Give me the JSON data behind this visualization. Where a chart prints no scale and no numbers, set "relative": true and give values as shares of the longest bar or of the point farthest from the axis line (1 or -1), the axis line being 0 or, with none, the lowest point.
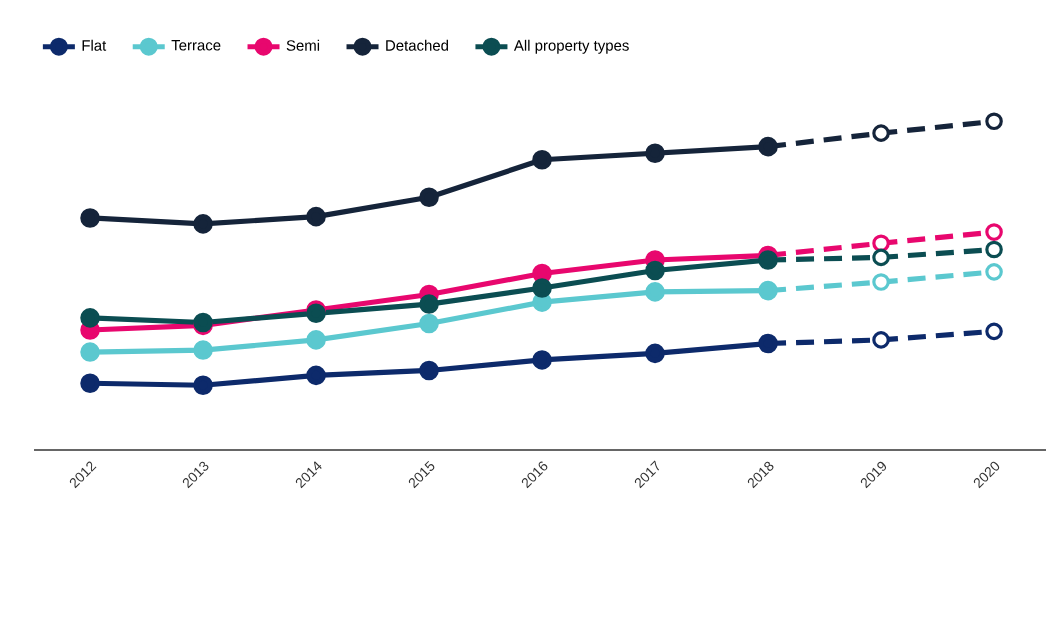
{
  "chart_data": {
    "type": "line",
    "relative": true,
    "legend": "top left",
    "marker": "circle",
    "line_style": "solid",
    "categories": [
      "2012",
      "2013",
      "2014",
      "2015",
      "2016",
      "2017",
      "2018",
      "2019",
      "2020"
    ],
    "series": [
      {
        "type": "line",
        "line_style": "dashed",
        "color": "#0d2a6b",
        "values": [
          null,
          null,
          null,
          null,
          null,
          null,
          0.324,
          0.335,
          0.361
        ]
      },
      {
        "type": "line",
        "line_style": "dashed",
        "color": "#5bc8cf",
        "values": [
          null,
          null,
          null,
          null,
          null,
          null,
          0.485,
          0.511,
          0.542
        ]
      },
      {
        "type": "line",
        "line_style": "dashed",
        "color": "#e8076e",
        "values": [
          null,
          null,
          null,
          null,
          null,
          null,
          0.592,
          0.629,
          0.663
        ]
      },
      {
        "type": "line",
        "line_style": "dashed",
        "color": "#15243a",
        "values": [
          null,
          null,
          null,
          null,
          null,
          null,
          0.923,
          0.964,
          1
        ]
      },
      {
        "type": "line",
        "line_style": "dashed",
        "color": "#0b4d52",
        "values": [
          null,
          null,
          null,
          null,
          null,
          null,
          0.578,
          0.586,
          0.61
        ]
      },
      {
        "name": "Flat",
        "color": "#0d2a6b",
        "values": [
          0.203,
          0.197,
          0.227,
          0.242,
          0.274,
          0.294,
          0.324,
          null,
          null
        ]
      },
      {
        "name": "Terrace",
        "color": "#5bc8cf",
        "values": [
          0.298,
          0.304,
          0.335,
          0.385,
          0.45,
          0.481,
          0.485,
          null,
          null
        ]
      },
      {
        "name": "Semi",
        "color": "#e8076e",
        "values": [
          0.365,
          0.379,
          0.426,
          0.473,
          0.537,
          0.578,
          0.592,
          null,
          null
        ]
      },
      {
        "name": "Detached",
        "color": "#15243a",
        "values": [
          0.706,
          0.688,
          0.71,
          0.769,
          0.883,
          0.903,
          0.923,
          null,
          null
        ]
      },
      {
        "name": "All property types",
        "color": "#0b4d52",
        "values": [
          0.402,
          0.388,
          0.416,
          0.444,
          0.493,
          0.546,
          0.578,
          null,
          null
        ]
      }
    ]
  }
}
